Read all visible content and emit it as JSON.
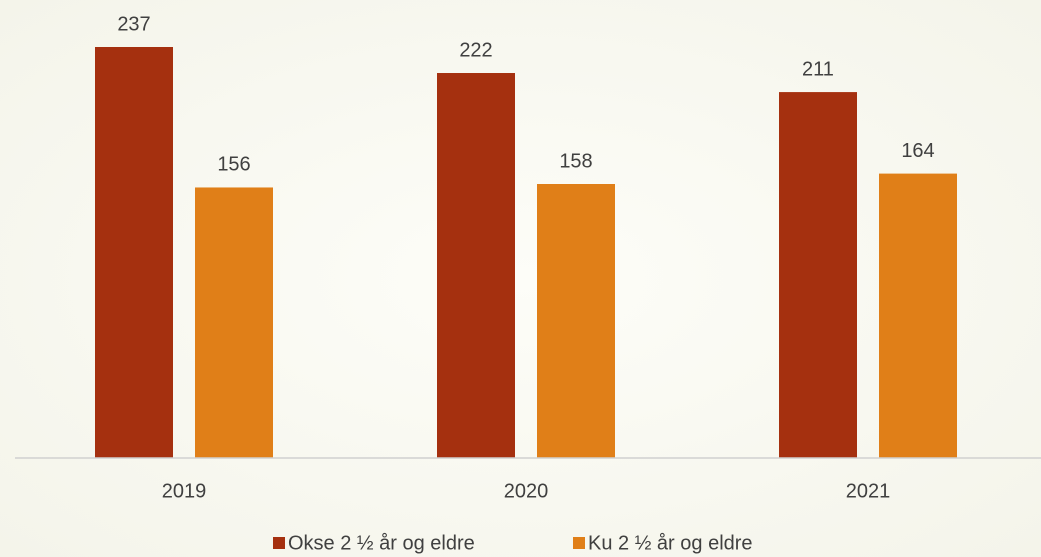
{
  "chart_data": {
    "type": "bar",
    "categories": [
      "2019",
      "2020",
      "2021"
    ],
    "series": [
      {
        "name": "Okse 2 ½ år og eldre",
        "color": "#a5300f",
        "values": [
          237,
          222,
          211
        ]
      },
      {
        "name": "Ku 2 ½ år og eldre",
        "color": "#e07f18",
        "values": [
          156,
          158,
          164
        ]
      }
    ],
    "legend": "bottom"
  }
}
